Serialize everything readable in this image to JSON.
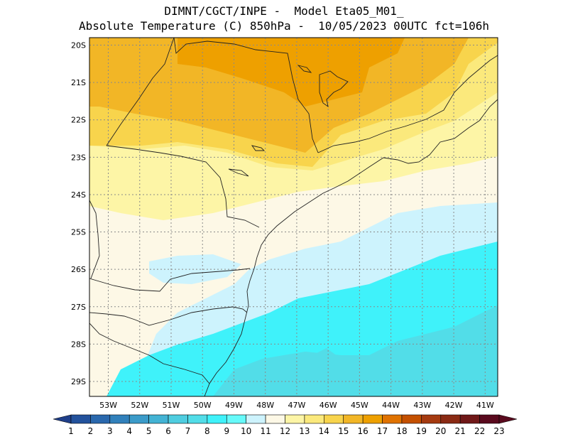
{
  "header": {
    "line1": "DIMNT/CGCT/INPE -  Model Eta05_M01_",
    "line2": "Absolute Temperature (C) 850hPa -  10/05/2023 00UTC fct=106h"
  },
  "axes": {
    "lat_labels": [
      "20S",
      "21S",
      "22S",
      "23S",
      "24S",
      "25S",
      "26S",
      "27S",
      "28S",
      "29S"
    ],
    "lon_labels": [
      "53W",
      "52W",
      "51W",
      "50W",
      "49W",
      "48W",
      "47W",
      "46W",
      "45W",
      "44W",
      "43W",
      "42W",
      "41W"
    ],
    "lat_range": [
      -29.4,
      -19.8
    ],
    "lon_range": [
      -53.6,
      -40.6
    ],
    "grid": true
  },
  "colorbar": {
    "labels": [
      "1",
      "2",
      "3",
      "4",
      "5",
      "6",
      "7",
      "8",
      "9",
      "10",
      "11",
      "12",
      "13",
      "14",
      "15",
      "16",
      "17",
      "18",
      "19",
      "20",
      "21",
      "22",
      "23"
    ],
    "colors": [
      "#1f3f8a",
      "#23529c",
      "#2a68ad",
      "#3180bb",
      "#3b9bc9",
      "#43b3d4",
      "#4fcde0",
      "#52dde8",
      "#3ff2fa",
      "#66fafa",
      "#cdf3fd",
      "#fdf8e6",
      "#fdf5a6",
      "#fbe97c",
      "#f8d44c",
      "#f2b626",
      "#eea000",
      "#e07200",
      "#c45000",
      "#a53a10",
      "#8a2a14",
      "#701818",
      "#5a0a1e"
    ]
  },
  "legend": {
    "isotherm_colors": {
      "10": "#cdf3fd",
      "11": "#fdf8e6",
      "12": "#fdf5a6",
      "13": "#fbe97c",
      "14": "#f8d44c",
      "15": "#f2b626",
      "16": "#eea000",
      "8": "#52dde8",
      "9": "#3ff2fa"
    }
  }
}
